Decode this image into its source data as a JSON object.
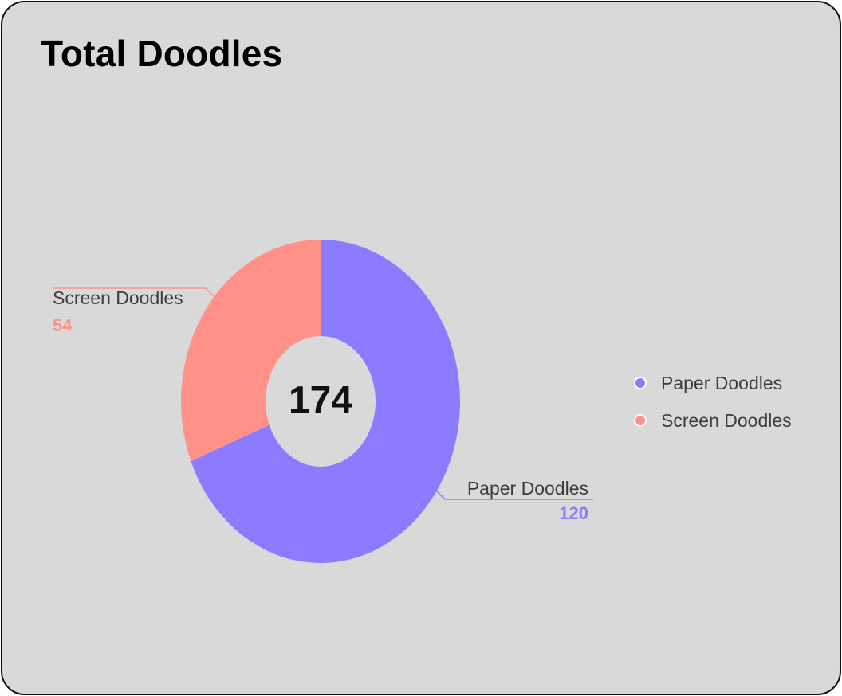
{
  "card": {
    "title": "Total Doodles"
  },
  "colors": {
    "paper": "#8b7bff",
    "screen": "#ff9189",
    "background": "#d9d9d9"
  },
  "chart_data": {
    "type": "pie",
    "title": "Total Doodles",
    "center_label": "174",
    "categories": [
      "Paper Doodles",
      "Screen Doodles"
    ],
    "values": [
      120,
      54
    ],
    "value_labels": [
      "120",
      "54"
    ],
    "legend_position": "right",
    "donut": true
  }
}
